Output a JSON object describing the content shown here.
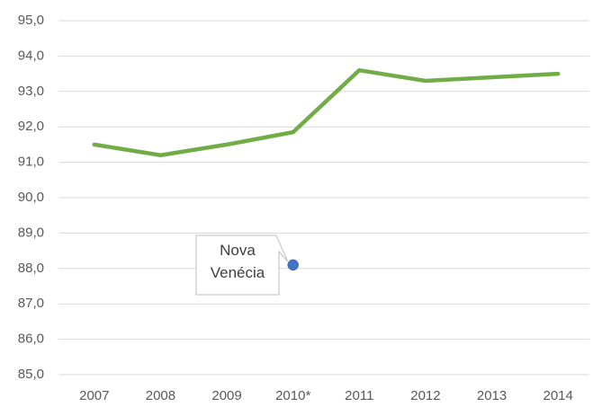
{
  "chart_data": {
    "type": "line",
    "categories": [
      "2007",
      "2008",
      "2009",
      "2010*",
      "2011",
      "2012",
      "2013",
      "2014"
    ],
    "series": [
      {
        "name": "",
        "color": "#70ad47",
        "values": [
          91.5,
          91.2,
          91.5,
          91.85,
          93.6,
          93.3,
          93.4,
          93.5
        ]
      },
      {
        "name": "Nova Venécia",
        "color": "#4472c4",
        "values": [
          null,
          null,
          null,
          88.1,
          null,
          null,
          null,
          null
        ]
      }
    ],
    "ylim": [
      85,
      95
    ],
    "yticks": [
      {
        "value": 85,
        "label": "85,0"
      },
      {
        "value": 86,
        "label": "86,0"
      },
      {
        "value": 87,
        "label": "87,0"
      },
      {
        "value": 88,
        "label": "88,0"
      },
      {
        "value": 89,
        "label": "89,0"
      },
      {
        "value": 90,
        "label": "90,0"
      },
      {
        "value": 91,
        "label": "91,0"
      },
      {
        "value": 92,
        "label": "92,0"
      },
      {
        "value": 93,
        "label": "93,0"
      },
      {
        "value": 94,
        "label": "94,0"
      },
      {
        "value": 95,
        "label": "95,0"
      }
    ],
    "grid": true
  }
}
